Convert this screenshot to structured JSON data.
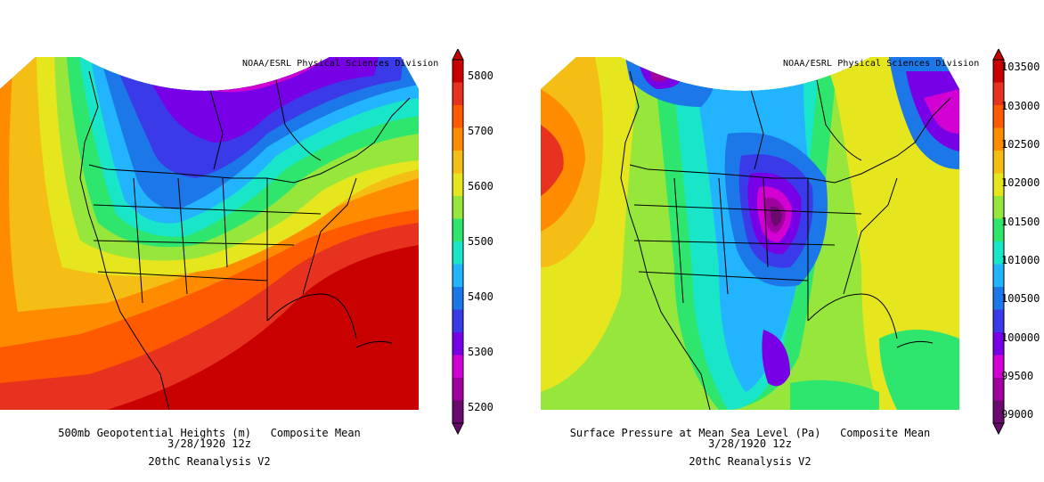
{
  "left_panel": {
    "credit": "NOAA/ESRL Physical Sciences Division",
    "caption_line1": "500mb Geopotential Heights (m)   Composite Mean",
    "caption_line2": "3/28/1920 12z",
    "caption_line3": "20thC Reanalysis V2",
    "colorbar": {
      "labels": [
        "5800",
        "5700",
        "5600",
        "5500",
        "5400",
        "5300",
        "5200"
      ],
      "colors": [
        "#6a0a6e",
        "#a000a0",
        "#d200d2",
        "#7700e6",
        "#3a3ae8",
        "#1c78e8",
        "#23b4ff",
        "#19e6c8",
        "#2ee66e",
        "#96e63c",
        "#e6e61e",
        "#f5be14",
        "#ff8c00",
        "#ff5a00",
        "#e6321e",
        "#c80000"
      ]
    }
  },
  "right_panel": {
    "credit": "NOAA/ESRL Physical Sciences Division",
    "caption_line1": "Surface Pressure at Mean Sea Level (Pa)   Composite Mean",
    "caption_line2": "3/28/1920 12z",
    "caption_line3": "20thC Reanalysis V2",
    "colorbar": {
      "labels": [
        "103500",
        "103000",
        "102500",
        "102000",
        "101500",
        "101000",
        "100500",
        "100000",
        "99500",
        "99000"
      ],
      "colors": [
        "#6a0a6e",
        "#a000a0",
        "#d200d2",
        "#7700e6",
        "#3a3ae8",
        "#1c78e8",
        "#23b4ff",
        "#19e6c8",
        "#2ee66e",
        "#96e63c",
        "#e6e61e",
        "#f5be14",
        "#ff8c00",
        "#ff5a00",
        "#e6321e",
        "#c80000"
      ]
    }
  }
}
